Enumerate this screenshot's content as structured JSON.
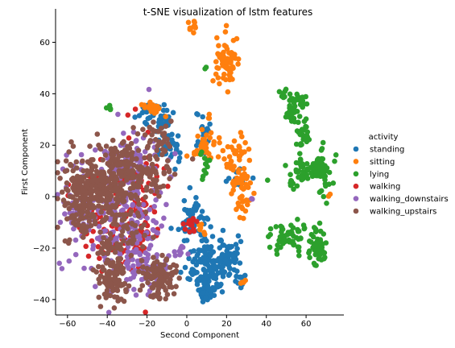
{
  "chart_data": {
    "type": "scatter",
    "title": "t-SNE visualization of lstm features",
    "xlabel": "Second Component",
    "ylabel": "First Component",
    "xlim": [
      -66,
      79
    ],
    "ylim": [
      -46,
      73
    ],
    "xticks": [
      -60,
      -40,
      -20,
      0,
      20,
      40,
      60
    ],
    "yticks": [
      -40,
      -20,
      0,
      20,
      40,
      60
    ],
    "grid": false,
    "legend": {
      "title": "activity",
      "placement": "right",
      "entries": [
        "standing",
        "sitting",
        "lying",
        "walking",
        "walking_downstairs",
        "walking_upstairs"
      ]
    },
    "series": [
      {
        "name": "standing",
        "color": "#1f77b4",
        "clusters": [
          {
            "cx": 12,
            "cy": -26,
            "sx": 6,
            "sy": 5,
            "n": 150
          },
          {
            "cx": 3,
            "cy": -9,
            "sx": 4,
            "sy": 4,
            "n": 50
          },
          {
            "cx": -20,
            "cy": 33,
            "sx": 2,
            "sy": 2,
            "n": 25
          },
          {
            "cx": -12,
            "cy": 29,
            "sx": 2,
            "sy": 3,
            "n": 30
          },
          {
            "cx": -8,
            "cy": 19,
            "sx": 3,
            "sy": 3,
            "n": 30
          },
          {
            "cx": 8,
            "cy": 24,
            "sx": 2,
            "sy": 3,
            "n": 20
          },
          {
            "cx": 10,
            "cy": -37,
            "sx": 2,
            "sy": 2,
            "n": 25
          },
          {
            "cx": 23,
            "cy": -25,
            "sx": 3,
            "sy": 4,
            "n": 30
          },
          {
            "cx": 26,
            "cy": 7,
            "sx": 3,
            "sy": 3,
            "n": 15
          },
          {
            "cx": 27,
            "cy": -32,
            "sx": 2,
            "sy": 2,
            "n": 10
          }
        ]
      },
      {
        "name": "sitting",
        "color": "#ff7f0e",
        "clusters": [
          {
            "cx": 3,
            "cy": 66,
            "sx": 1.5,
            "sy": 1.5,
            "n": 10
          },
          {
            "cx": 20,
            "cy": 52,
            "sx": 3,
            "sy": 5,
            "n": 70
          },
          {
            "cx": 10,
            "cy": 19,
            "sx": 4,
            "sy": 3,
            "n": 40
          },
          {
            "cx": 24,
            "cy": 14,
            "sx": 4,
            "sy": 5,
            "n": 40
          },
          {
            "cx": 28,
            "cy": 2,
            "sx": 2.5,
            "sy": 5,
            "n": 40
          },
          {
            "cx": -17,
            "cy": 34,
            "sx": 2.5,
            "sy": 1.5,
            "n": 25
          },
          {
            "cx": 12,
            "cy": 31,
            "sx": 1,
            "sy": 1,
            "n": 3
          },
          {
            "cx": 72,
            "cy": 0,
            "sx": 0.5,
            "sy": 0.5,
            "n": 2
          },
          {
            "cx": 28,
            "cy": -33,
            "sx": 1,
            "sy": 1,
            "n": 4
          },
          {
            "cx": 8,
            "cy": -12,
            "sx": 2,
            "sy": 2,
            "n": 6
          }
        ]
      },
      {
        "name": "lying",
        "color": "#2ca02c",
        "clusters": [
          {
            "cx": 50,
            "cy": 40,
            "sx": 1.5,
            "sy": 1.5,
            "n": 8
          },
          {
            "cx": 53,
            "cy": 33,
            "sx": 2,
            "sy": 3,
            "n": 30
          },
          {
            "cx": 57,
            "cy": 37,
            "sx": 2,
            "sy": 1.5,
            "n": 15
          },
          {
            "cx": 58,
            "cy": 25,
            "sx": 2,
            "sy": 3,
            "n": 25
          },
          {
            "cx": 60,
            "cy": 10,
            "sx": 6,
            "sy": 2,
            "n": 60
          },
          {
            "cx": 68,
            "cy": 10,
            "sx": 2,
            "sy": 5,
            "n": 35
          },
          {
            "cx": 52,
            "cy": -16,
            "sx": 6,
            "sy": 3,
            "n": 60
          },
          {
            "cx": 64,
            "cy": -20,
            "sx": 2,
            "sy": 4,
            "n": 20
          },
          {
            "cx": 67,
            "cy": -22,
            "sx": 1.5,
            "sy": 5,
            "n": 30
          },
          {
            "cx": 53,
            "cy": 5,
            "sx": 1,
            "sy": 1,
            "n": 6
          },
          {
            "cx": 9,
            "cy": 13,
            "sx": 1,
            "sy": 4,
            "n": 12
          },
          {
            "cx": -39,
            "cy": 35,
            "sx": 0.7,
            "sy": 0.7,
            "n": 5
          },
          {
            "cx": 9,
            "cy": 50,
            "sx": 0.5,
            "sy": 0.5,
            "n": 2
          }
        ]
      },
      {
        "name": "walking",
        "color": "#d62728",
        "clusters": [
          {
            "cx": -38,
            "cy": -5,
            "sx": 10,
            "sy": 12,
            "n": 110
          },
          {
            "cx": -22,
            "cy": 5,
            "sx": 6,
            "sy": 8,
            "n": 40
          },
          {
            "cx": 3,
            "cy": -10,
            "sx": 2,
            "sy": 2,
            "n": 12
          },
          {
            "cx": -25,
            "cy": -18,
            "sx": 5,
            "sy": 4,
            "n": 30
          }
        ]
      },
      {
        "name": "walking_downstairs",
        "color": "#9467bd",
        "clusters": [
          {
            "cx": -35,
            "cy": -6,
            "sx": 12,
            "sy": 14,
            "n": 220
          },
          {
            "cx": -22,
            "cy": -28,
            "sx": 8,
            "sy": 6,
            "n": 80
          },
          {
            "cx": -28,
            "cy": 14,
            "sx": 6,
            "sy": 4,
            "n": 40
          },
          {
            "cx": -55,
            "cy": -7,
            "sx": 3,
            "sy": 3,
            "n": 30
          },
          {
            "cx": 32,
            "cy": 0,
            "sx": 0.5,
            "sy": 0.5,
            "n": 2
          },
          {
            "cx": -3,
            "cy": -20,
            "sx": 2,
            "sy": 2,
            "n": 8
          }
        ]
      },
      {
        "name": "walking_upstairs",
        "color": "#8c564b",
        "clusters": [
          {
            "cx": -45,
            "cy": 2,
            "sx": 8,
            "sy": 7,
            "n": 260
          },
          {
            "cx": -33,
            "cy": 12,
            "sx": 6,
            "sy": 5,
            "n": 100
          },
          {
            "cx": -20,
            "cy": 9,
            "sx": 6,
            "sy": 7,
            "n": 80
          },
          {
            "cx": -37,
            "cy": -32,
            "sx": 4,
            "sy": 4,
            "n": 90
          },
          {
            "cx": -14,
            "cy": -31,
            "sx": 5,
            "sy": 4,
            "n": 100
          },
          {
            "cx": -55,
            "cy": 0,
            "sx": 5,
            "sy": 7,
            "n": 60
          },
          {
            "cx": -30,
            "cy": -13,
            "sx": 4,
            "sy": 5,
            "n": 40
          },
          {
            "cx": -15,
            "cy": 22,
            "sx": 3,
            "sy": 3,
            "n": 25
          },
          {
            "cx": -40,
            "cy": -20,
            "sx": 3,
            "sy": 3,
            "n": 30
          }
        ]
      }
    ]
  }
}
